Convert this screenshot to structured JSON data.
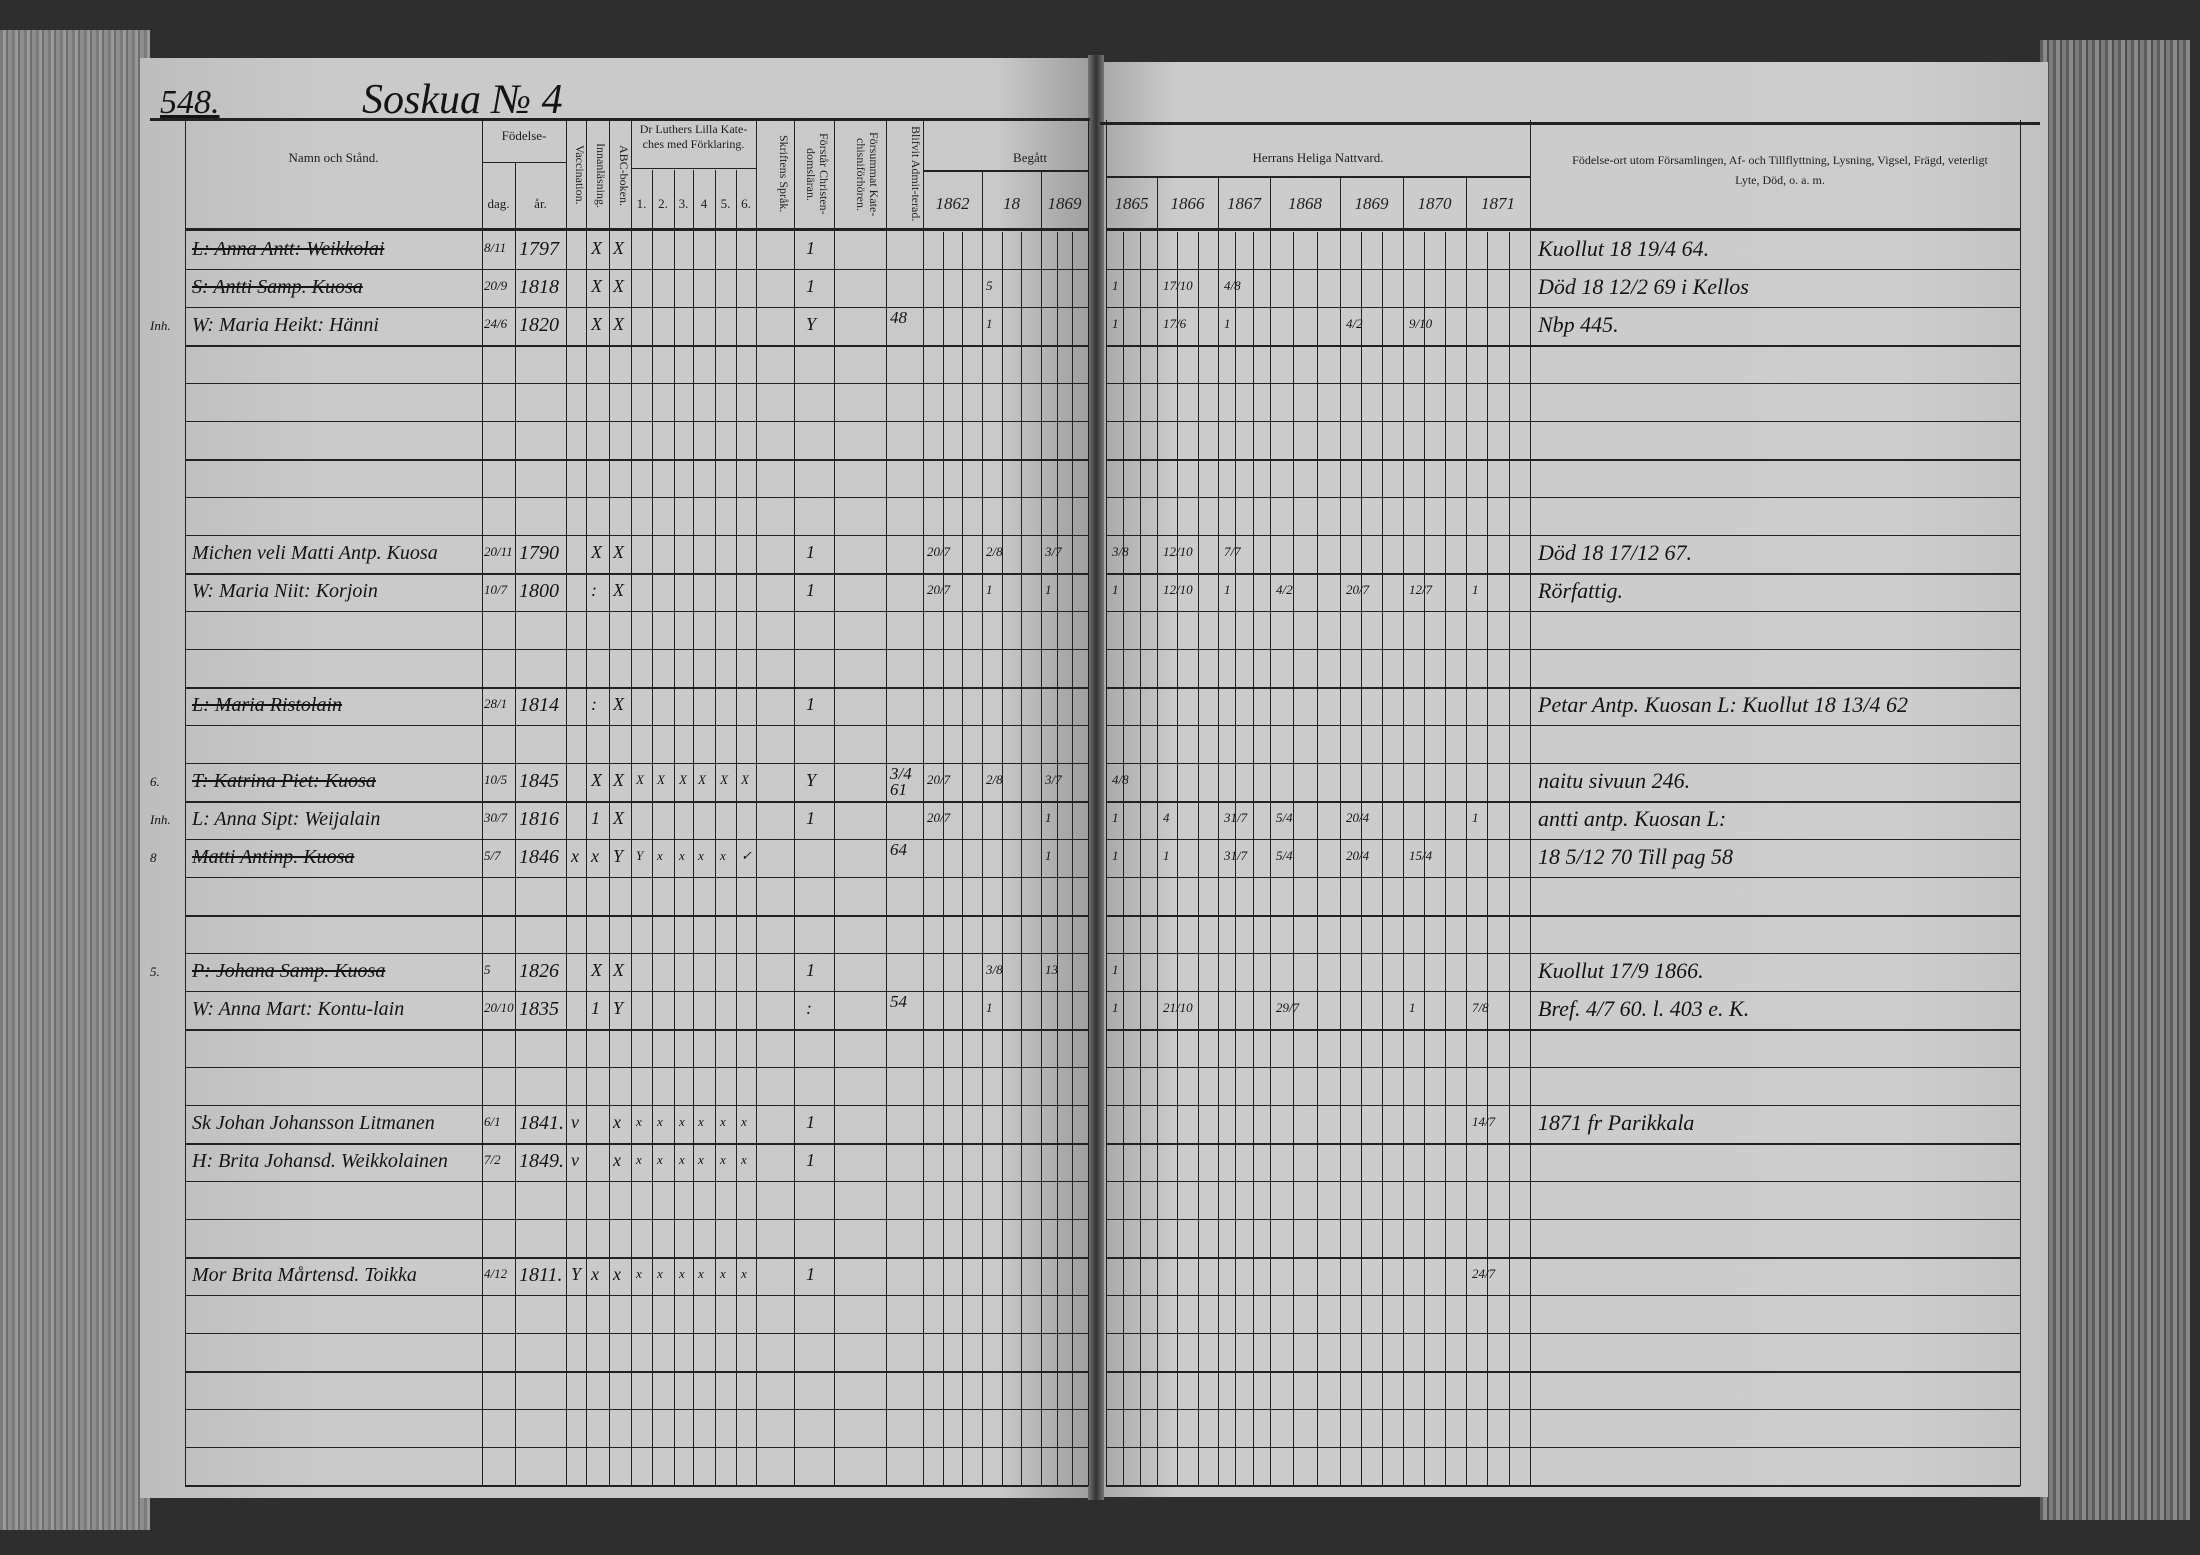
{
  "page_number": "548.",
  "household": "Soskua № 4",
  "headers": {
    "name": "Namn och Stånd.",
    "birth": "Födelse-",
    "birth_day": "dag.",
    "birth_year": "år.",
    "vaccination": "Vaccination.",
    "reading": "Innanläsning.",
    "abc": "ABC-boken.",
    "catechism": "Dr Luthers Lilla Kate-ches med Förklaring.",
    "catechism_parts": [
      "1.",
      "2.",
      "3.",
      "4",
      "5.",
      "6."
    ],
    "scripture": "Skriftens Språk.",
    "christian": "Förstår Christen-domsläran.",
    "missed": "Försummat Kate-chisniförhören.",
    "admitted": "Blifvit Admit-terad.",
    "begatt": "Begått",
    "begatt_years": [
      "1862",
      "18",
      "1869"
    ],
    "communion": "Herrans Heliga Nattvard.",
    "communion_years": [
      "1865",
      "1866",
      "1867",
      "1868",
      "1869",
      "1870",
      "1871"
    ],
    "remarks": "Födelse-ort utom Församlingen, Af- och Tillflyttning, Lysning, Vigsel, Frägd, veterligt Lyte, Död, o. a. m."
  },
  "rows": [
    {
      "name": "L: Anna Antt: Weikkolai",
      "struck": true,
      "dag": "8/11",
      "ar": "1797",
      "innan": "X",
      "abc": "X",
      "forstar": "1",
      "remarks": "Kuollut 18 19/4 64."
    },
    {
      "name": "S: Antti Samp. Kuosa",
      "struck": true,
      "dag": "20/9",
      "ar": "1818",
      "innan": "X",
      "abc": "X",
      "forstar": "1",
      "begatt": [
        "",
        "5",
        ""
      ],
      "communion": [
        "1",
        "17/10",
        "4/8",
        "",
        "",
        "",
        ""
      ],
      "remarks": "Död 18 12/2 69 i Kellos"
    },
    {
      "name": "W: Maria Heikt: Hänni",
      "margin": "Inh.",
      "dag": "24/6",
      "ar": "1820",
      "innan": "X",
      "abc": "X",
      "forstar": "Y",
      "admit": "48",
      "begatt": [
        "",
        "1",
        ""
      ],
      "communion": [
        "1",
        "17/6",
        "1",
        "",
        "4/2",
        "9/10",
        ""
      ],
      "remarks": "Nbp 445."
    },
    {},
    {},
    {},
    {},
    {},
    {
      "name": "Michen veli Matti Antp. Kuosa",
      "dag": "20/11",
      "ar": "1790",
      "innan": "X",
      "abc": "X",
      "forstar": "1",
      "begatt": [
        "20/7",
        "2/8",
        "3/7"
      ],
      "communion": [
        "3/8",
        "12/10",
        "7/7",
        "",
        "",
        "",
        ""
      ],
      "remarks": "Död 18 17/12 67."
    },
    {
      "name": "W: Maria Niit: Korjoin",
      "dag": "10/7",
      "ar": "1800",
      "innan": ":",
      "abc": "X",
      "forstar": "1",
      "begatt": [
        "20/7",
        "1",
        "1"
      ],
      "communion": [
        "1",
        "12/10",
        "1",
        "4/2",
        "20/7",
        "12/7",
        "1"
      ],
      "remarks": "Rörfattig."
    },
    {},
    {},
    {
      "name": "L: Maria Ristolain",
      "struck": true,
      "dag": "28/1",
      "ar": "1814",
      "innan": ":",
      "abc": "X",
      "forstar": "1",
      "remarks": "Petar Antp. Kuosan L: Kuollut 18 13/4 62"
    },
    {},
    {
      "name": "T: Katrina Piet: Kuosa",
      "struck": true,
      "margin": "6.",
      "dag": "10/5",
      "ar": "1845",
      "innan": "X",
      "abc": "X",
      "kat": [
        "X",
        "X",
        "X",
        "X",
        "X",
        "X"
      ],
      "forstar": "Y",
      "admit": "3/4 61",
      "begatt": [
        "20/7",
        "2/8",
        "3/7"
      ],
      "communion": [
        "4/8",
        "",
        "",
        "",
        "",
        "",
        ""
      ],
      "remarks": "naitu sivuun 246."
    },
    {
      "name": "L: Anna Sipt: Weijalain",
      "margin": "Inh.",
      "dag": "30/7",
      "ar": "1816",
      "innan": "1",
      "abc": "X",
      "forstar": "1",
      "begatt": [
        "20/7",
        "",
        "1"
      ],
      "communion": [
        "1",
        "4",
        "31/7",
        "5/4",
        "20/4",
        "",
        "1"
      ],
      "remarks": "antti antp. Kuosan L:"
    },
    {
      "name": "Matti Antinp. Kuosa",
      "struck": true,
      "margin": "8",
      "dag": "5/7",
      "ar": "1846",
      "vacc": "x",
      "innan": "x",
      "abc": "Y",
      "kat": [
        "Y",
        "x",
        "x",
        "x",
        "x",
        "✓"
      ],
      "admit": "64",
      "begatt": [
        "",
        "",
        "1"
      ],
      "communion": [
        "1",
        "1",
        "31/7",
        "5/4",
        "20/4",
        "15/4",
        ""
      ],
      "remarks": "18 5/12 70 Till pag 58"
    },
    {},
    {},
    {
      "name": "P: Johana Samp. Kuosa",
      "struck": true,
      "margin": "5.",
      "dag": "5",
      "ar": "1826",
      "innan": "X",
      "abc": "X",
      "forstar": "1",
      "begatt": [
        "",
        "3/8",
        "13"
      ],
      "communion": [
        "1",
        "",
        "",
        "",
        "",
        "",
        ""
      ],
      "remarks": "Kuollut 17/9 1866."
    },
    {
      "name": "W: Anna Mart: Kontu-lain",
      "dag": "20/10",
      "ar": "1835",
      "innan": "1",
      "abc": "Y",
      "forstar": ":",
      "admit": "54",
      "begatt": [
        "",
        "1",
        ""
      ],
      "communion": [
        "1",
        "21/10",
        "",
        "29/7",
        "",
        "1",
        "7/8"
      ],
      "remarks": "Bref. 4/7 60. l. 403 e. K."
    },
    {},
    {},
    {
      "name": "Sk Johan Johansson Litmanen",
      "dag": "6/1",
      "ar": "1841.",
      "vacc": "v",
      "kat": [
        "x",
        "x",
        "x",
        "x",
        "x",
        "x"
      ],
      "abc": "x",
      "forstar": "1",
      "communion": [
        "",
        "",
        "",
        "",
        "",
        "",
        "14/7"
      ],
      "remarks": "1871 fr Parikkala"
    },
    {
      "name": "H: Brita Johansd. Weikkolainen",
      "dag": "7/2",
      "ar": "1849.",
      "vacc": "v",
      "kat": [
        "x",
        "x",
        "x",
        "x",
        "x",
        "x"
      ],
      "abc": "x",
      "forstar": "1"
    },
    {},
    {},
    {
      "name": "Mor Brita Mårtensd. Toikka",
      "dag": "4/12",
      "ar": "1811.",
      "vacc": "Y",
      "innan": "x",
      "abc": "x",
      "kat": [
        "x",
        "x",
        "x",
        "x",
        "x",
        "x"
      ],
      "forstar": "1",
      "communion": [
        "",
        "",
        "",
        "",
        "",
        "",
        "24/7"
      ]
    },
    {},
    {},
    {},
    {},
    {}
  ]
}
